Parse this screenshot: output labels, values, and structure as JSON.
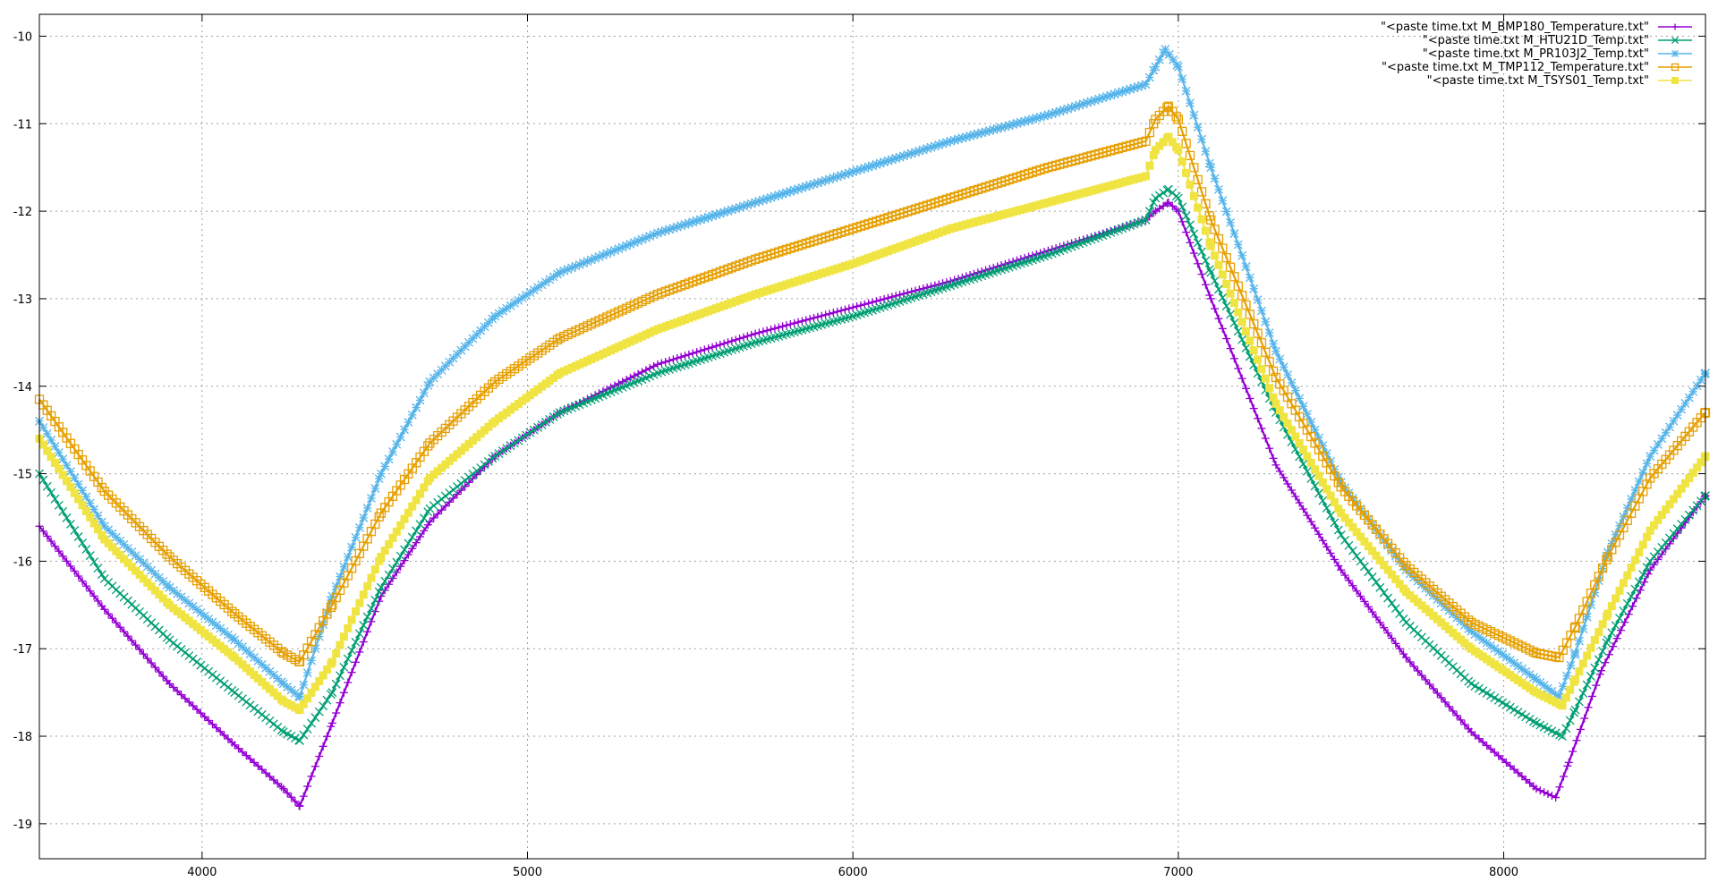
{
  "chart_data": {
    "type": "line",
    "title": "",
    "xlabel": "",
    "ylabel": "",
    "xlim": [
      3500,
      8620
    ],
    "ylim": [
      -19.4,
      -9.75
    ],
    "grid": true,
    "legend_position": "top-right",
    "x_ticks": [
      4000,
      5000,
      6000,
      7000,
      8000
    ],
    "y_ticks": [
      -10,
      -11,
      -12,
      -13,
      -14,
      -15,
      -16,
      -17,
      -18,
      -19
    ],
    "series": [
      {
        "name": "\"<paste time.txt M_BMP180_Temperature.txt\"",
        "color": "#9400d3",
        "marker": "plus",
        "x": [
          3500,
          3700,
          3900,
          4100,
          4250,
          4300,
          4400,
          4550,
          4700,
          4900,
          5100,
          5400,
          5700,
          6000,
          6300,
          6600,
          6900,
          6930,
          6970,
          7000,
          7100,
          7300,
          7500,
          7700,
          7900,
          8100,
          8160,
          8200,
          8300,
          8450,
          8620
        ],
        "y": [
          -15.6,
          -16.55,
          -17.4,
          -18.1,
          -18.6,
          -18.8,
          -17.85,
          -16.4,
          -15.55,
          -14.8,
          -14.3,
          -13.75,
          -13.4,
          -13.1,
          -12.8,
          -12.45,
          -12.1,
          -12.0,
          -11.9,
          -12.0,
          -13.0,
          -14.9,
          -16.1,
          -17.1,
          -17.95,
          -18.6,
          -18.7,
          -18.3,
          -17.25,
          -16.1,
          -15.25
        ]
      },
      {
        "name": "\"<paste time.txt M_HTU21D_Temp.txt\"",
        "color": "#009e73",
        "marker": "cross",
        "x": [
          3500,
          3700,
          3900,
          4100,
          4250,
          4300,
          4400,
          4550,
          4700,
          4900,
          5100,
          5400,
          5700,
          6000,
          6300,
          6600,
          6900,
          6930,
          6970,
          7000,
          7100,
          7300,
          7500,
          7700,
          7900,
          8100,
          8180,
          8220,
          8320,
          8450,
          8620
        ],
        "y": [
          -15.0,
          -16.2,
          -16.9,
          -17.5,
          -17.95,
          -18.05,
          -17.5,
          -16.3,
          -15.4,
          -14.8,
          -14.3,
          -13.85,
          -13.5,
          -13.2,
          -12.85,
          -12.5,
          -12.1,
          -11.85,
          -11.75,
          -11.85,
          -12.7,
          -14.3,
          -15.7,
          -16.7,
          -17.4,
          -17.85,
          -18.0,
          -17.7,
          -16.9,
          -16.0,
          -15.25
        ]
      },
      {
        "name": "\"<paste time.txt M_PR103J2_Temp.txt\"",
        "color": "#56b4e9",
        "marker": "star",
        "x": [
          3500,
          3700,
          3900,
          4100,
          4250,
          4300,
          4400,
          4550,
          4700,
          4900,
          5100,
          5400,
          5700,
          6000,
          6300,
          6600,
          6900,
          6930,
          6960,
          7000,
          7100,
          7300,
          7500,
          7700,
          7900,
          8100,
          8170,
          8220,
          8320,
          8450,
          8620
        ],
        "y": [
          -14.4,
          -15.6,
          -16.3,
          -16.9,
          -17.4,
          -17.55,
          -16.4,
          -15.0,
          -13.95,
          -13.2,
          -12.7,
          -12.25,
          -11.9,
          -11.55,
          -11.2,
          -10.9,
          -10.55,
          -10.35,
          -10.15,
          -10.35,
          -11.5,
          -13.6,
          -15.1,
          -16.1,
          -16.8,
          -17.35,
          -17.55,
          -17.05,
          -15.9,
          -14.8,
          -13.85
        ]
      },
      {
        "name": "\"<paste time.txt M_TMP112_Temperature.txt\"",
        "color": "#e69f00",
        "marker": "square",
        "x": [
          3500,
          3700,
          3900,
          4100,
          4250,
          4300,
          4400,
          4550,
          4700,
          4900,
          5100,
          5400,
          5700,
          6000,
          6300,
          6600,
          6900,
          6930,
          6970,
          7000,
          7100,
          7300,
          7500,
          7700,
          7900,
          8100,
          8170,
          8220,
          8320,
          8450,
          8620
        ],
        "y": [
          -14.15,
          -15.2,
          -15.95,
          -16.6,
          -17.05,
          -17.15,
          -16.5,
          -15.45,
          -14.65,
          -13.95,
          -13.45,
          -12.95,
          -12.55,
          -12.2,
          -11.85,
          -11.5,
          -11.2,
          -10.95,
          -10.8,
          -10.95,
          -12.1,
          -13.9,
          -15.15,
          -16.05,
          -16.7,
          -17.05,
          -17.1,
          -16.75,
          -15.95,
          -15.05,
          -14.3
        ]
      },
      {
        "name": "\"<paste time.txt M_TSYS01_Temp.txt\"",
        "color": "#f0e442",
        "marker": "filled-square",
        "x": [
          3500,
          3700,
          3900,
          4100,
          4250,
          4300,
          4400,
          4550,
          4700,
          4900,
          5100,
          5400,
          5700,
          6000,
          6300,
          6600,
          6900,
          6930,
          6970,
          7000,
          7100,
          7300,
          7500,
          7700,
          7900,
          8100,
          8180,
          8220,
          8320,
          8450,
          8620
        ],
        "y": [
          -14.6,
          -15.75,
          -16.5,
          -17.1,
          -17.6,
          -17.7,
          -17.15,
          -15.95,
          -15.05,
          -14.4,
          -13.85,
          -13.35,
          -12.95,
          -12.6,
          -12.2,
          -11.9,
          -11.6,
          -11.3,
          -11.15,
          -11.3,
          -12.4,
          -14.2,
          -15.45,
          -16.35,
          -17.0,
          -17.5,
          -17.65,
          -17.35,
          -16.6,
          -15.65,
          -14.8
        ]
      }
    ]
  }
}
